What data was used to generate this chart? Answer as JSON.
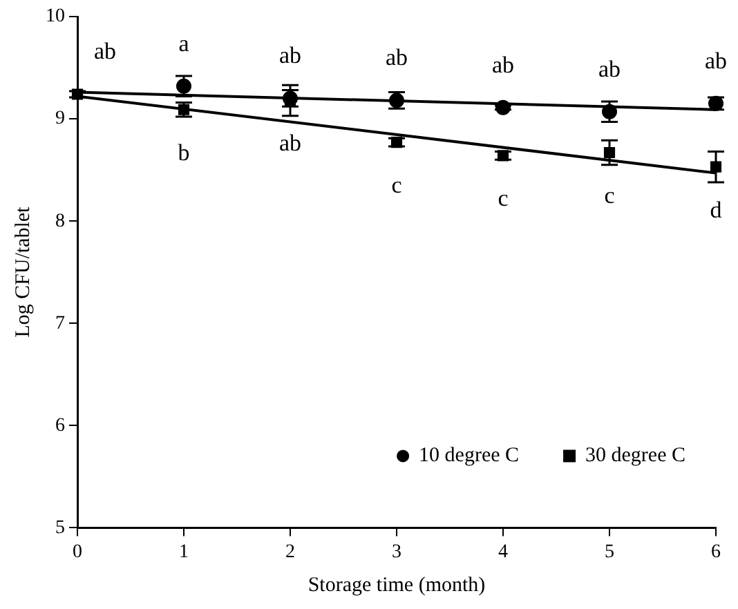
{
  "chart_data": {
    "type": "scatter",
    "xlabel": "Storage time (month)",
    "ylabel": "Log CFU/tablet",
    "xlim": [
      0,
      6
    ],
    "xticks": [
      0,
      1,
      2,
      3,
      4,
      5,
      6
    ],
    "ylim": [
      5,
      10
    ],
    "yticks": [
      5,
      6,
      7,
      8,
      9,
      10
    ],
    "grid": false,
    "legend": "bottom right",
    "series": [
      {
        "name": "10 degree C",
        "color": "#000000",
        "marker": "circle",
        "x": [
          1,
          2,
          3,
          4,
          5,
          6
        ],
        "values": [
          9.32,
          9.2,
          9.18,
          9.11,
          9.07,
          9.15
        ],
        "errors": [
          0.1,
          0.08,
          0.08,
          0.02,
          0.1,
          0.06
        ]
      },
      {
        "name": "30 degree C",
        "color": "#000000",
        "marker": "square",
        "x": [
          0,
          1,
          2,
          3,
          4,
          5,
          6
        ],
        "values": [
          9.24,
          9.09,
          9.18,
          8.77,
          8.64,
          8.67,
          8.53
        ],
        "errors": [
          0.03,
          0.07,
          0.15,
          0.04,
          0.04,
          0.12,
          0.15
        ]
      },
      {
        "type": "line",
        "color": "#000000",
        "marker": "none",
        "x": [
          0,
          6
        ],
        "values": [
          9.26,
          9.09
        ]
      },
      {
        "type": "line",
        "color": "#000000",
        "marker": "none",
        "x": [
          0,
          6
        ],
        "values": [
          9.22,
          8.47
        ]
      }
    ],
    "annotations": [
      {
        "text": "ab",
        "x": 0,
        "y": 9.24
      },
      {
        "text": "a",
        "x": 1,
        "y": 9.32
      },
      {
        "text": "ab",
        "x": 2,
        "y": 9.2
      },
      {
        "text": "ab",
        "x": 3,
        "y": 9.18
      },
      {
        "text": "ab",
        "x": 4,
        "y": 9.11
      },
      {
        "text": "ab",
        "x": 5,
        "y": 9.07
      },
      {
        "text": "ab",
        "x": 6,
        "y": 9.15
      },
      {
        "text": "b",
        "x": 1,
        "y": 9.09
      },
      {
        "text": "ab",
        "x": 2,
        "y": 9.18
      },
      {
        "text": "c",
        "x": 3,
        "y": 8.77
      },
      {
        "text": "c",
        "x": 4,
        "y": 8.64
      },
      {
        "text": "c",
        "x": 5,
        "y": 8.67
      },
      {
        "text": "d",
        "x": 6,
        "y": 8.53
      }
    ]
  }
}
